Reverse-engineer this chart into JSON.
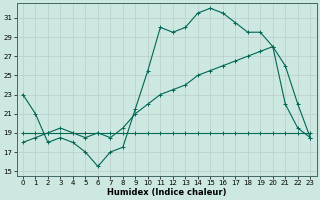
{
  "xlabel": "Humidex (Indice chaleur)",
  "bg_color": "#cce8e0",
  "grid_color": "#bbcccc",
  "line_color": "#006655",
  "xlim": [
    -0.5,
    23.5
  ],
  "ylim": [
    14.5,
    32.5
  ],
  "yticks": [
    15,
    17,
    19,
    21,
    23,
    25,
    27,
    29,
    31
  ],
  "xticks": [
    0,
    1,
    2,
    3,
    4,
    5,
    6,
    7,
    8,
    9,
    10,
    11,
    12,
    13,
    14,
    15,
    16,
    17,
    18,
    19,
    20,
    21,
    22,
    23
  ],
  "line1_x": [
    0,
    1,
    2,
    3,
    4,
    5,
    6,
    7,
    8,
    9,
    10,
    11,
    12,
    13,
    14,
    15,
    16,
    17,
    18,
    19,
    20,
    21,
    22,
    23
  ],
  "line1_y": [
    23,
    21,
    18,
    18.5,
    18,
    17,
    15.5,
    17,
    17.5,
    21.5,
    25.5,
    30,
    29.5,
    30,
    31.5,
    32,
    31.5,
    30.5,
    29.5,
    29.5,
    28,
    22,
    19.5,
    18.5
  ],
  "line2_x": [
    0,
    1,
    2,
    3,
    4,
    5,
    6,
    7,
    8,
    9,
    10,
    11,
    12,
    13,
    14,
    15,
    16,
    17,
    18,
    19,
    20,
    21,
    22,
    23
  ],
  "line2_y": [
    19,
    19,
    19,
    19,
    19,
    19,
    19,
    19,
    19,
    19,
    19,
    19,
    19,
    19,
    19,
    19,
    19,
    19,
    19,
    19,
    19,
    19,
    19,
    19
  ],
  "line3_x": [
    0,
    1,
    2,
    3,
    4,
    5,
    6,
    7,
    8,
    9,
    10,
    11,
    12,
    13,
    14,
    15,
    16,
    17,
    18,
    19,
    20,
    21,
    22,
    23
  ],
  "line3_y": [
    18,
    18.5,
    19,
    19.5,
    19,
    18.5,
    19,
    18.5,
    19.5,
    21,
    22,
    23,
    23.5,
    24,
    25,
    25.5,
    26,
    26.5,
    27,
    27.5,
    28,
    26,
    22,
    18.5
  ]
}
